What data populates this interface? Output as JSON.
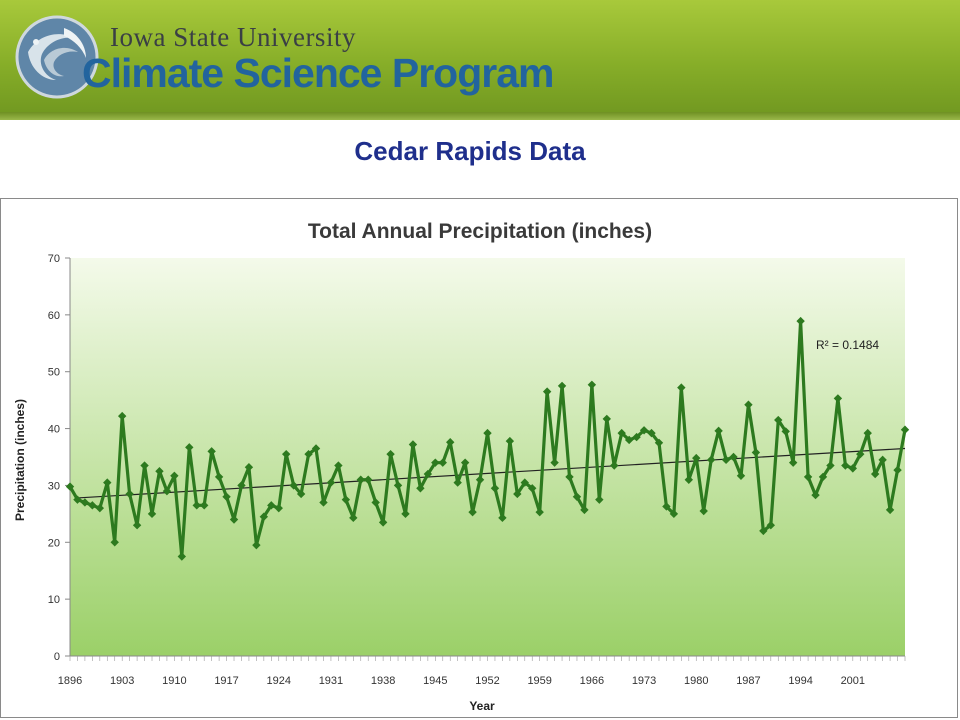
{
  "header": {
    "university": "Iowa State University",
    "program": "Climate Science Program",
    "logo_icon": "globe-swirl-icon"
  },
  "slide_title": "Cedar Rapids Data",
  "colors": {
    "series": "#2d7a1f",
    "trendline": "#222222",
    "plot_top": "#f4faea",
    "plot_bottom": "#9bd068"
  },
  "chart_data": {
    "type": "line",
    "title": "Total Annual Precipitation (inches)",
    "xlabel": "Year",
    "ylabel": "Precipitation (inches)",
    "ylim": [
      0,
      70
    ],
    "yticks": [
      0,
      10,
      20,
      30,
      40,
      50,
      60,
      70
    ],
    "xlim": [
      1896,
      2008
    ],
    "xticks": [
      "1896",
      "1903",
      "1910",
      "1917",
      "1924",
      "1931",
      "1938",
      "1945",
      "1952",
      "1959",
      "1966",
      "1973",
      "1980",
      "1987",
      "1994",
      "2001"
    ],
    "grid": false,
    "legend": "none",
    "series": [
      {
        "values": [
          29.8,
          27.5,
          27.0,
          26.5,
          26.0,
          30.5,
          20.0,
          42.2,
          28.5,
          23.0,
          33.5,
          25.0,
          32.5,
          29.0,
          31.7,
          17.5,
          36.7,
          26.5,
          26.5,
          36.0,
          31.5,
          28.0,
          24.0,
          30.0,
          33.2,
          19.5,
          24.5,
          26.5,
          26.0,
          35.5,
          30.0,
          28.5,
          35.5,
          36.5,
          27.0,
          30.5,
          33.5,
          27.5,
          24.3,
          31.0,
          31.0,
          27.0,
          23.5,
          35.5,
          30.0,
          25.0,
          37.2,
          29.5,
          32.0,
          34.0,
          34.0,
          37.6,
          30.5,
          34.0,
          25.3,
          31.0,
          39.2,
          29.5,
          24.3,
          37.8,
          28.5,
          30.5,
          29.5,
          25.3,
          46.5,
          34.0,
          47.5,
          31.5,
          28.0,
          25.7,
          47.7,
          27.5,
          41.7,
          33.5,
          39.2,
          38.0,
          38.5,
          39.7,
          39.2,
          37.5,
          26.3,
          25.0,
          47.2,
          31.0,
          34.8,
          25.5,
          34.5,
          39.6,
          34.5,
          35.0,
          31.7,
          44.2,
          35.8,
          22.0,
          23.0,
          41.5,
          39.5,
          34.0,
          58.9,
          31.5,
          28.3,
          31.5,
          33.5,
          45.3,
          33.5,
          33.0,
          35.5,
          39.2,
          32.0,
          34.5,
          25.7,
          32.7,
          39.8
        ]
      }
    ],
    "trendline": {
      "type": "linear",
      "start": [
        1897,
        27.8
      ],
      "end": [
        2008,
        36.5
      ],
      "r2_label": "R² = 0.1484"
    }
  }
}
